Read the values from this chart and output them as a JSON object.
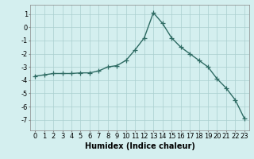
{
  "x": [
    0,
    1,
    2,
    3,
    4,
    5,
    6,
    7,
    8,
    9,
    10,
    11,
    12,
    13,
    14,
    15,
    16,
    17,
    18,
    19,
    20,
    21,
    22,
    23
  ],
  "y": [
    -3.7,
    -3.6,
    -3.5,
    -3.5,
    -3.5,
    -3.45,
    -3.45,
    -3.3,
    -3.0,
    -2.9,
    -2.5,
    -1.7,
    -0.8,
    1.1,
    0.3,
    -0.8,
    -1.5,
    -2.0,
    -2.5,
    -3.0,
    -3.9,
    -4.6,
    -5.5,
    -6.9
  ],
  "line_color": "#2e6b63",
  "marker": "+",
  "markersize": 4,
  "linewidth": 1.0,
  "xlabel": "Humidex (Indice chaleur)",
  "xlim": [
    -0.5,
    23.5
  ],
  "ylim": [
    -7.8,
    1.7
  ],
  "yticks": [
    1,
    0,
    -1,
    -2,
    -3,
    -4,
    -5,
    -6,
    -7
  ],
  "xticks": [
    0,
    1,
    2,
    3,
    4,
    5,
    6,
    7,
    8,
    9,
    10,
    11,
    12,
    13,
    14,
    15,
    16,
    17,
    18,
    19,
    20,
    21,
    22,
    23
  ],
  "background_color": "#d4efef",
  "grid_color": "#aacece",
  "tick_fontsize": 6,
  "xlabel_fontsize": 7
}
